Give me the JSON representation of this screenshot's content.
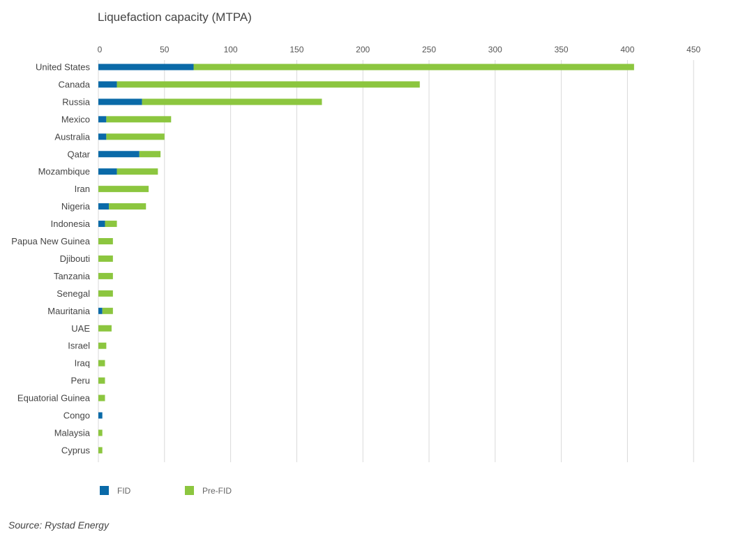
{
  "chart_data": {
    "type": "bar",
    "orientation": "horizontal",
    "stacked": true,
    "title": "Liquefaction capacity (MTPA)",
    "xlim": [
      0,
      450
    ],
    "xticks": [
      0,
      50,
      100,
      150,
      200,
      250,
      300,
      350,
      400,
      450
    ],
    "grid": true,
    "legend_position": "bottom-left",
    "categories": [
      "United States",
      "Canada",
      "Russia",
      "Mexico",
      "Australia",
      "Qatar",
      "Mozambique",
      "Iran",
      "Nigeria",
      "Indonesia",
      "Papua New Guinea",
      "Djibouti",
      "Tanzania",
      "Senegal",
      "Mauritania",
      "UAE",
      "Israel",
      "Iraq",
      "Peru",
      "Equatorial Guinea",
      "Congo",
      "Malaysia",
      "Cyprus"
    ],
    "series": [
      {
        "name": "FID",
        "color": "#0a6aa8",
        "values": [
          72,
          14,
          33,
          6,
          6,
          31,
          14,
          0,
          8,
          5,
          0,
          0,
          0,
          0,
          3,
          0,
          0,
          0,
          0,
          0,
          3,
          0,
          0
        ]
      },
      {
        "name": "Pre-FID",
        "color": "#8cc63f",
        "values": [
          333,
          229,
          136,
          49,
          44,
          16,
          31,
          38,
          28,
          9,
          11,
          11,
          11,
          11,
          8,
          10,
          6,
          5,
          5,
          5,
          0,
          3,
          3
        ]
      }
    ]
  },
  "source": "Source: Rystad Energy"
}
